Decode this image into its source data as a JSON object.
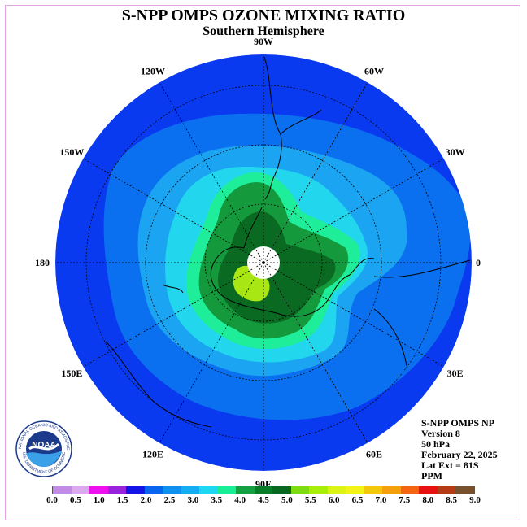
{
  "header": {
    "title": "S-NPP OMPS OZONE MIXING RATIO",
    "subtitle": "Southern Hemisphere"
  },
  "longitude_labels": [
    {
      "text": "90W",
      "angle": -90
    },
    {
      "text": "60W",
      "angle": -60
    },
    {
      "text": "30W",
      "angle": -30
    },
    {
      "text": "0",
      "angle": 0
    },
    {
      "text": "30E",
      "angle": 30
    },
    {
      "text": "60E",
      "angle": 60
    },
    {
      "text": "90E",
      "angle": 90
    },
    {
      "text": "120E",
      "angle": 120
    },
    {
      "text": "150E",
      "angle": 150
    },
    {
      "text": "180",
      "angle": 180
    },
    {
      "text": "150W",
      "angle": 210
    },
    {
      "text": "120W",
      "angle": 240
    }
  ],
  "info": {
    "line1": "S-NPP OMPS NP",
    "line2": "Version 8",
    "line3": "50 hPa",
    "line4": "February 22, 2025",
    "line5": "Lat Ext = 81S",
    "line6": "PPM"
  },
  "logo": {
    "text": "NOAA",
    "ring_text": "NATIONAL OCEANIC AND ATMOSPHERIC ADMINISTRATION",
    "ring_text_bottom": "U.S. DEPARTMENT OF COMMERCE"
  },
  "colorbar": {
    "colors": [
      "#c08ce8",
      "#dca8ee",
      "#ee10ee",
      "#9922dd",
      "#1414e8",
      "#0a64f0",
      "#1090ee",
      "#12aef0",
      "#1cd8f0",
      "#18ee96",
      "#14a040",
      "#0a7c28",
      "#086820",
      "#7cdc10",
      "#a8ee08",
      "#dcf414",
      "#f4f414",
      "#f4c80a",
      "#f4a00a",
      "#f46414",
      "#e81010",
      "#b43c14",
      "#78502c"
    ],
    "ticks": [
      "0.0",
      "0.5",
      "1.0",
      "1.5",
      "2.0",
      "2.5",
      "3.0",
      "3.5",
      "4.0",
      "4.5",
      "5.0",
      "5.5",
      "6.0",
      "6.5",
      "7.0",
      "7.5",
      "8.0",
      "8.5",
      "9.0"
    ]
  },
  "colors": {
    "outer_blue": "#0a3af0",
    "mid_blue": "#0a70f0",
    "light_blue": "#1aa4f2",
    "cyan": "#22d6ee",
    "aqua": "#1eee9a",
    "green": "#149a3c",
    "dark_green": "#0a6a22",
    "lime": "#a8e614"
  }
}
